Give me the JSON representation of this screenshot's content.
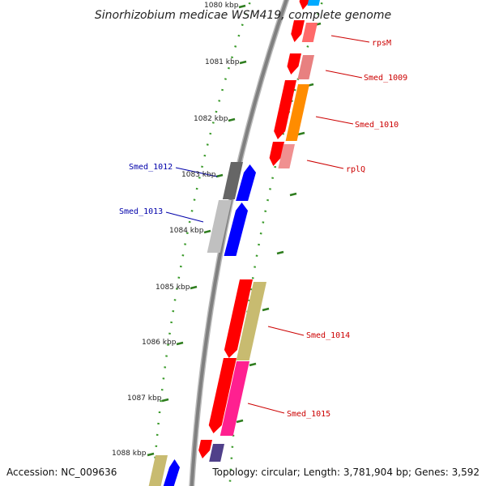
{
  "title": "Sinorhizobium medicae WSM419, complete genome",
  "footer": {
    "accession": "Accession: NC_009636",
    "summary": "Topology: circular; Length: 3,781,904 bp; Genes: 3,592"
  },
  "colors": {
    "backbone": "#808080",
    "tick_major": "#2e7d1e",
    "tick_minor": "#3a9a2a",
    "label_red": "#cc0000",
    "label_blue": "#0000aa"
  },
  "scale": {
    "top_label": "1080 kbp",
    "labels": [
      "1081 kbp",
      "1082 kbp",
      "1083 kbp",
      "1084 kbp",
      "1085 kbp",
      "1086 kbp",
      "1087 kbp",
      "1088 kbp"
    ]
  },
  "genes": [
    {
      "name": "rpsM",
      "strand": "forward",
      "color": "red"
    },
    {
      "name": "Smed_1009",
      "strand": "forward",
      "color": "red"
    },
    {
      "name": "Smed_1010",
      "strand": "forward",
      "color": "red"
    },
    {
      "name": "rplQ",
      "strand": "forward",
      "color": "red"
    },
    {
      "name": "Smed_1012",
      "strand": "reverse",
      "color": "blue"
    },
    {
      "name": "Smed_1013",
      "strand": "reverse",
      "color": "blue"
    },
    {
      "name": "Smed_1014",
      "strand": "forward",
      "color": "red"
    },
    {
      "name": "Smed_1015",
      "strand": "forward",
      "color": "red"
    }
  ]
}
